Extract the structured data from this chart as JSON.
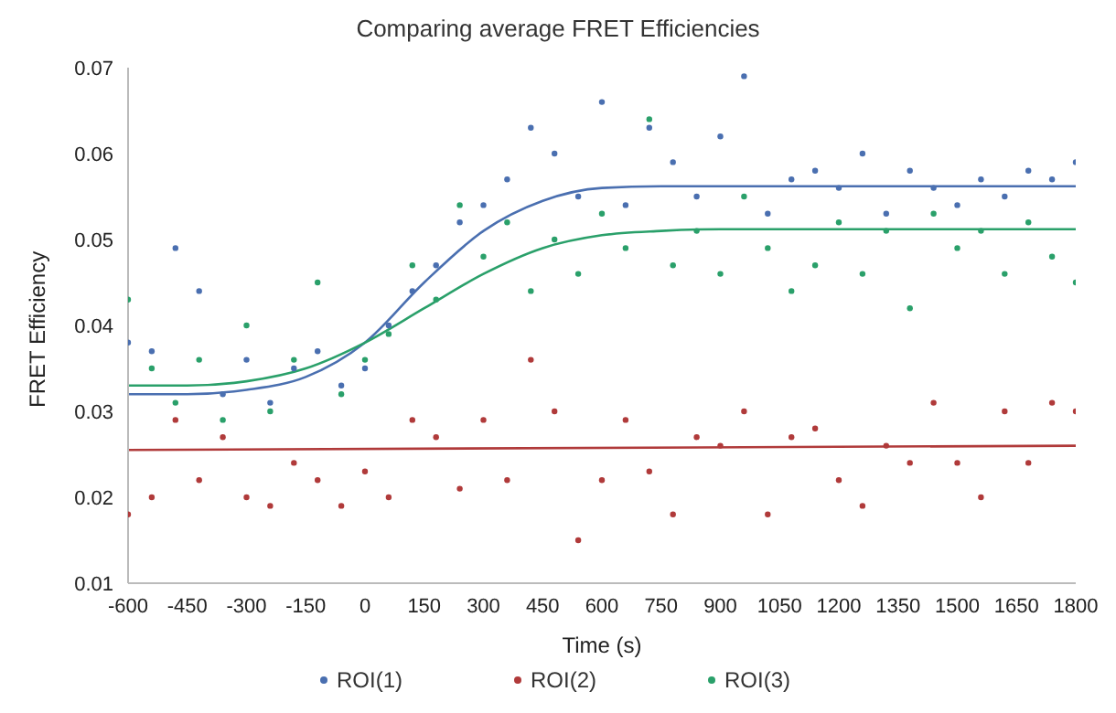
{
  "chart_data": {
    "type": "scatter",
    "title": "Comparing average FRET Efficiencies",
    "xlabel": "Time (s)",
    "ylabel": "FRET Efficiency",
    "x": [
      -600,
      -540,
      -480,
      -420,
      -360,
      -300,
      -240,
      -180,
      -120,
      -60,
      0,
      60,
      120,
      180,
      240,
      300,
      360,
      420,
      480,
      540,
      600,
      660,
      720,
      780,
      840,
      900,
      960,
      1020,
      1080,
      1140,
      1200,
      1260,
      1320,
      1380,
      1440,
      1500,
      1560,
      1620,
      1680,
      1740,
      1800
    ],
    "series": [
      {
        "name": "ROI(1)",
        "color": "#4a6fb0",
        "values": [
          0.038,
          0.037,
          0.049,
          0.044,
          0.032,
          0.036,
          0.031,
          0.035,
          0.037,
          0.033,
          0.035,
          0.04,
          0.044,
          0.047,
          0.052,
          0.054,
          0.057,
          0.063,
          0.06,
          0.055,
          0.066,
          0.054,
          0.063,
          0.059,
          0.055,
          0.062,
          0.069,
          0.053,
          0.057,
          0.058,
          0.056,
          0.06,
          0.053,
          0.058,
          0.056,
          0.054,
          0.057,
          0.055,
          0.058,
          0.057,
          0.059
        ]
      },
      {
        "name": "ROI(2)",
        "color": "#b03a3a",
        "values": [
          0.018,
          0.02,
          0.029,
          0.022,
          0.027,
          0.02,
          0.019,
          0.024,
          0.022,
          0.019,
          0.023,
          0.02,
          0.029,
          0.027,
          0.021,
          0.029,
          0.022,
          0.036,
          0.03,
          0.015,
          0.022,
          0.029,
          0.023,
          0.018,
          0.027,
          0.026,
          0.03,
          0.018,
          0.027,
          0.028,
          0.022,
          0.019,
          0.026,
          0.024,
          0.031,
          0.024,
          0.02,
          0.03,
          0.024,
          0.031,
          0.03
        ]
      },
      {
        "name": "ROI(3)",
        "color": "#2aa06a",
        "values": [
          0.043,
          0.035,
          0.031,
          0.036,
          0.029,
          0.04,
          0.03,
          0.036,
          0.045,
          0.032,
          0.036,
          0.039,
          0.047,
          0.043,
          0.054,
          0.048,
          0.052,
          0.044,
          0.05,
          0.046,
          0.053,
          0.049,
          0.064,
          0.047,
          0.051,
          0.046,
          0.055,
          0.049,
          0.044,
          0.047,
          0.052,
          0.046,
          0.051,
          0.042,
          0.053,
          0.049,
          0.051,
          0.046,
          0.052,
          0.048,
          0.045
        ]
      },
      {
        "type": "line",
        "marker": "none",
        "color": "#4a6fb0",
        "x": [
          -600,
          -450,
          -300,
          -150,
          0,
          150,
          300,
          450,
          600,
          750,
          900,
          1200,
          1500,
          1800
        ],
        "values": [
          0.032,
          0.032,
          0.0325,
          0.034,
          0.038,
          0.045,
          0.051,
          0.0545,
          0.056,
          0.0562,
          0.0562,
          0.0562,
          0.0562,
          0.0562
        ]
      },
      {
        "type": "line",
        "marker": "none",
        "color": "#2aa06a",
        "x": [
          -600,
          -450,
          -300,
          -150,
          0,
          150,
          300,
          450,
          600,
          750,
          900,
          1200,
          1500,
          1800
        ],
        "values": [
          0.033,
          0.033,
          0.0335,
          0.035,
          0.038,
          0.042,
          0.046,
          0.049,
          0.0505,
          0.051,
          0.0512,
          0.0512,
          0.0512,
          0.0512
        ]
      },
      {
        "type": "line",
        "marker": "none",
        "color": "#b03a3a",
        "x": [
          -600,
          1800
        ],
        "values": [
          0.0255,
          0.026
        ]
      }
    ],
    "xlim": [
      -600,
      1800
    ],
    "xticks": [
      -600,
      -450,
      -300,
      -150,
      0,
      150,
      300,
      450,
      600,
      750,
      900,
      1050,
      1200,
      1350,
      1500,
      1650,
      1800
    ],
    "ylim": [
      0.01,
      0.07
    ],
    "yticks": [
      0.01,
      0.02,
      0.03,
      0.04,
      0.05,
      0.06,
      0.07
    ],
    "marker": "circle",
    "legend": "bottom"
  }
}
